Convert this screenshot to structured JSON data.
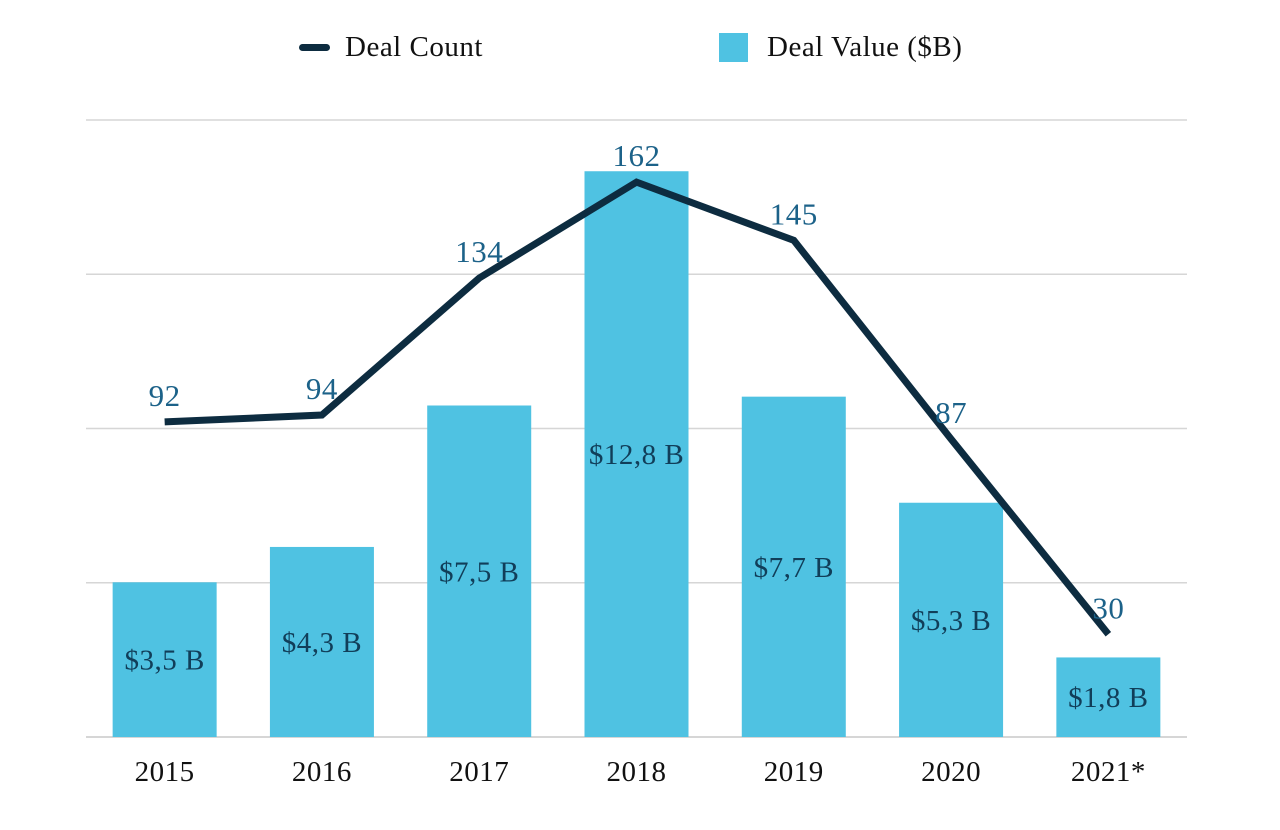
{
  "legend": {
    "deal_count_label": "Deal Count",
    "deal_value_label": "Deal Value ($B)"
  },
  "colors": {
    "bar": "#4FC2E2",
    "line": "#0D2C40",
    "count_label": "#1C6289",
    "bar_label": "#113E59",
    "axis_text": "#111111",
    "gridline": "#D6D6D6"
  },
  "chart_data": {
    "type": "combo (bar + line)",
    "categories": [
      "2015",
      "2016",
      "2017",
      "2018",
      "2019",
      "2020",
      "2021*"
    ],
    "series": [
      {
        "name": "Deal Count",
        "type": "line",
        "values": [
          92,
          94,
          134,
          162,
          145,
          87,
          30
        ],
        "value_labels": [
          "92",
          "94",
          "134",
          "162",
          "145",
          "87",
          "30"
        ]
      },
      {
        "name": "Deal Value ($B)",
        "type": "bar",
        "values": [
          3.5,
          4.3,
          7.5,
          12.8,
          7.7,
          5.3,
          1.8
        ],
        "value_labels": [
          "$3,5 B",
          "$4,3 B",
          "$7,5 B",
          "$12,8 B",
          "$7,7 B",
          "$5,3 B",
          "$1,8 B"
        ]
      }
    ],
    "grid": "horizontal gridlines, no visible y-axis tick labels",
    "legend_position": "top"
  }
}
